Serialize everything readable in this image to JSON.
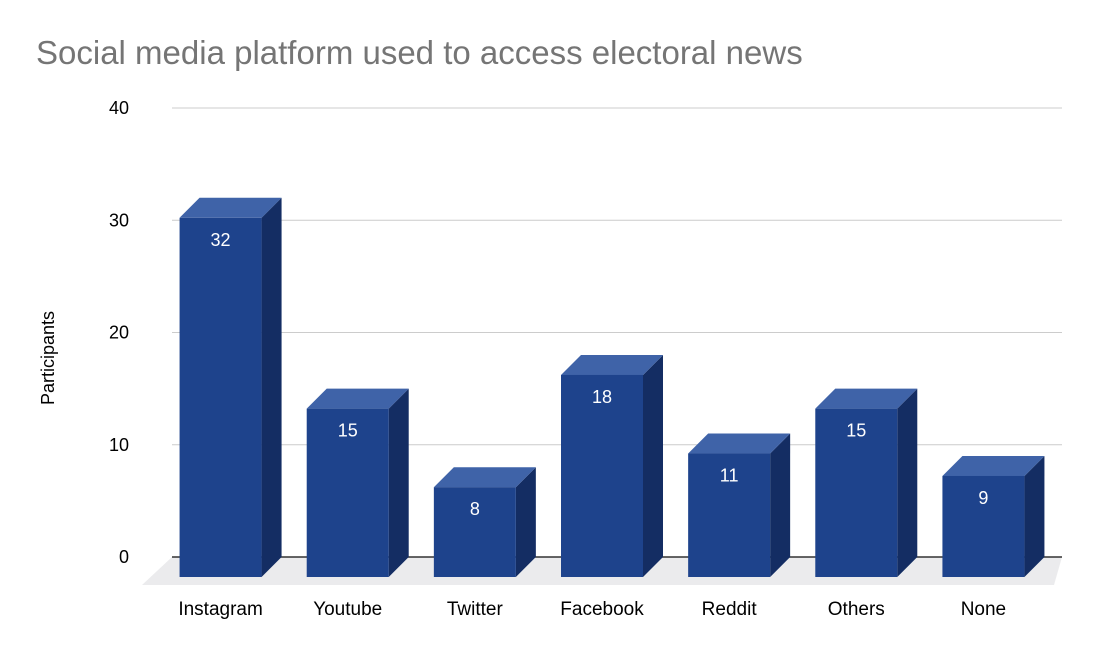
{
  "chart_data": {
    "type": "bar",
    "title": "Social media platform used to access electoral news",
    "xlabel": "",
    "ylabel": "Participants",
    "categories": [
      "Instagram",
      "Youtube",
      "Twitter",
      "Facebook",
      "Reddit",
      "Others",
      "None"
    ],
    "values": [
      32,
      15,
      8,
      18,
      11,
      15,
      9
    ],
    "value_labels": [
      "32",
      "15",
      "8",
      "18",
      "11",
      "15",
      "9"
    ],
    "ylim": [
      0,
      40
    ],
    "yticks": [
      0,
      10,
      20,
      30,
      40
    ],
    "ytick_labels": [
      "0",
      "10",
      "20",
      "30",
      "40"
    ],
    "grid": true,
    "style": "3d-bar",
    "colors": {
      "bar_front": "#1e438c",
      "bar_top": "#3f63a8",
      "bar_side": "#142d63",
      "floor": "#ebebed",
      "grid": "#cccccc",
      "title": "#757575",
      "label": "#000000",
      "data_label": "#ffffff"
    }
  }
}
